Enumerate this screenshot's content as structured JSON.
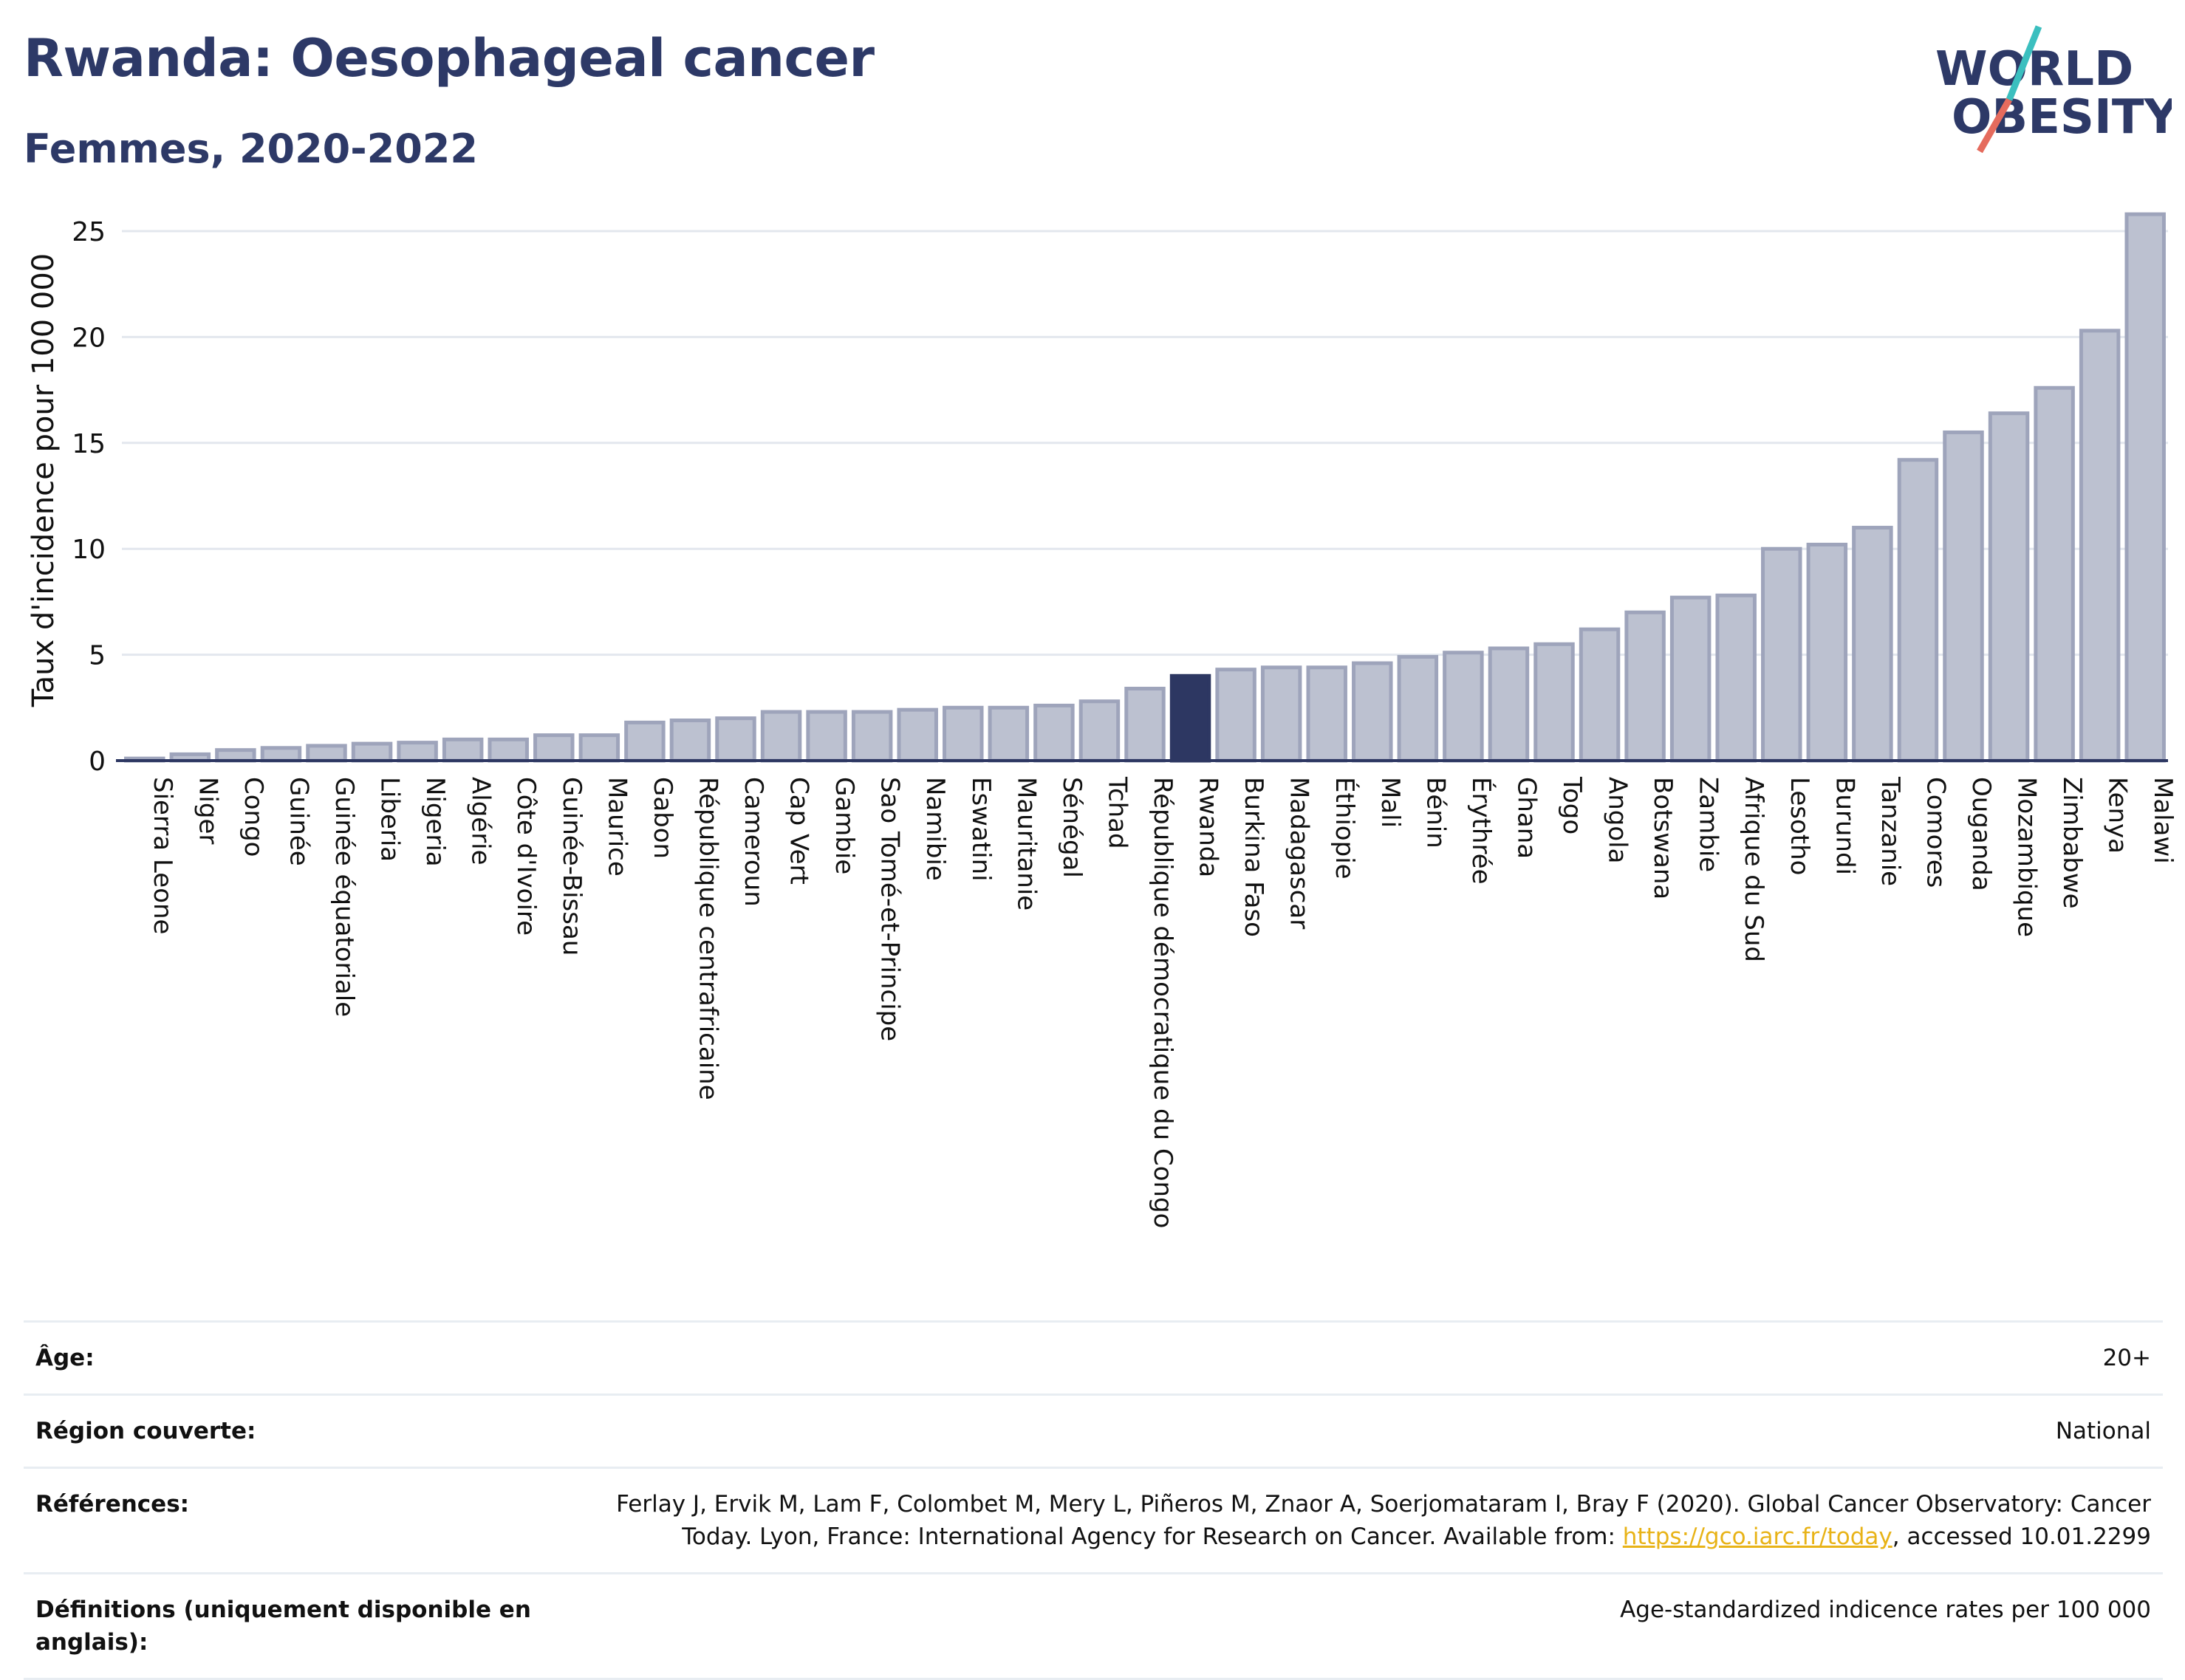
{
  "header": {
    "title": "Rwanda: Oesophageal cancer",
    "subtitle": "Femmes, 2020-2022"
  },
  "logo": {
    "line1": "WORLD",
    "line2": "OBESITY",
    "colors": {
      "text": "#2d3967",
      "slash_top": "#3bbfbf",
      "slash_bottom": "#e56b5d"
    }
  },
  "chart_data": {
    "type": "bar",
    "ylabel": "Taux d'incidence pour 100 000",
    "xlabel": "",
    "ylim": [
      0,
      26.5
    ],
    "yticks": [
      0,
      5,
      10,
      15,
      20,
      25
    ],
    "grid": true,
    "highlight": "Rwanda",
    "colors": {
      "bar": "#bcc1d0",
      "bar_border": "#9ea4bb",
      "highlight": "#2d3762",
      "axis": "#2d3762",
      "grid": "#e3e7ee"
    },
    "categories": [
      "Sierra Leone",
      "Niger",
      "Congo",
      "Guinée",
      "Guinée équatoriale",
      "Liberia",
      "Nigeria",
      "Algérie",
      "Côte d'Ivoire",
      "Guinée-Bissau",
      "Maurice",
      "Gabon",
      "République centrafricaine",
      "Cameroun",
      "Cap Vert",
      "Gambie",
      "Sao Tomé-et-Principe",
      "Namibie",
      "Eswatini",
      "Mauritanie",
      "Sénégal",
      "Tchad",
      "République démocratique du Congo",
      "Rwanda",
      "Burkina Faso",
      "Madagascar",
      "Éthiopie",
      "Mali",
      "Bénin",
      "Érythrée",
      "Ghana",
      "Togo",
      "Angola",
      "Botswana",
      "Zambie",
      "Afrique du Sud",
      "Lesotho",
      "Burundi",
      "Tanzanie",
      "Comores",
      "Ouganda",
      "Mozambique",
      "Zimbabwe",
      "Kenya",
      "Malawi"
    ],
    "values": [
      0.1,
      0.3,
      0.5,
      0.6,
      0.7,
      0.8,
      0.85,
      1.0,
      1.0,
      1.2,
      1.2,
      1.8,
      1.9,
      2.0,
      2.3,
      2.3,
      2.3,
      2.4,
      2.5,
      2.5,
      2.6,
      2.8,
      3.4,
      4.0,
      4.3,
      4.4,
      4.4,
      4.6,
      4.9,
      5.1,
      5.3,
      5.5,
      6.2,
      7.0,
      7.7,
      7.8,
      10.0,
      10.2,
      11.0,
      14.2,
      15.5,
      16.4,
      17.6,
      20.3,
      25.8
    ]
  },
  "info": {
    "rows": [
      {
        "label": "Âge:",
        "value": "20+"
      },
      {
        "label": "Région couverte:",
        "value": "National"
      },
      {
        "label": "Références:",
        "value_line1": "Ferlay J, Ervik M, Lam F, Colombet M, Mery L, Piñeros M, Znaor A, Soerjomataram I, Bray F (2020). Global Cancer Observatory: Cancer",
        "value_line2_prefix": "Today. Lyon, France: International Agency for Research on Cancer. Available from: ",
        "link": "https://gco.iarc.fr/today",
        "value_line2_suffix": ", accessed 10.01.2299"
      },
      {
        "label": "Définitions (uniquement disponible en anglais):",
        "value": "Age-standardized indicence rates per 100 000"
      }
    ]
  }
}
